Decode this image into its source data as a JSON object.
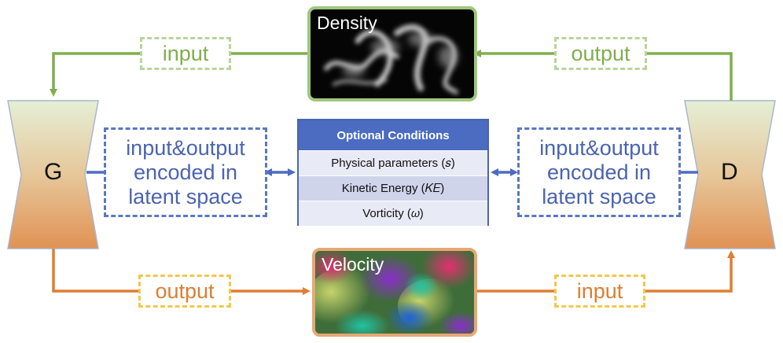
{
  "nodes": {
    "generator": "G",
    "discriminator": "D"
  },
  "images": {
    "density_title": "Density",
    "velocity_title": "Velocity"
  },
  "labels": {
    "top_left": "input",
    "top_right": "output",
    "bottom_left": "output",
    "bottom_right": "input",
    "latent_left": [
      "input&output",
      "encoded in",
      "latent space"
    ],
    "latent_right": [
      "input&output",
      "encoded in",
      "latent space"
    ]
  },
  "conditions": {
    "header": "Optional Conditions",
    "rows": [
      "Physical parameters (𝑠)",
      "Kinetic Energy (𝐾𝐸)",
      "Vorticity (𝜔)"
    ]
  },
  "colors": {
    "green_path": "#7faf4d",
    "orange_path": "#de7f34",
    "blue_link": "#4b6cc1",
    "density_border": "#9ec77c",
    "velocity_border": "#e7a873"
  }
}
